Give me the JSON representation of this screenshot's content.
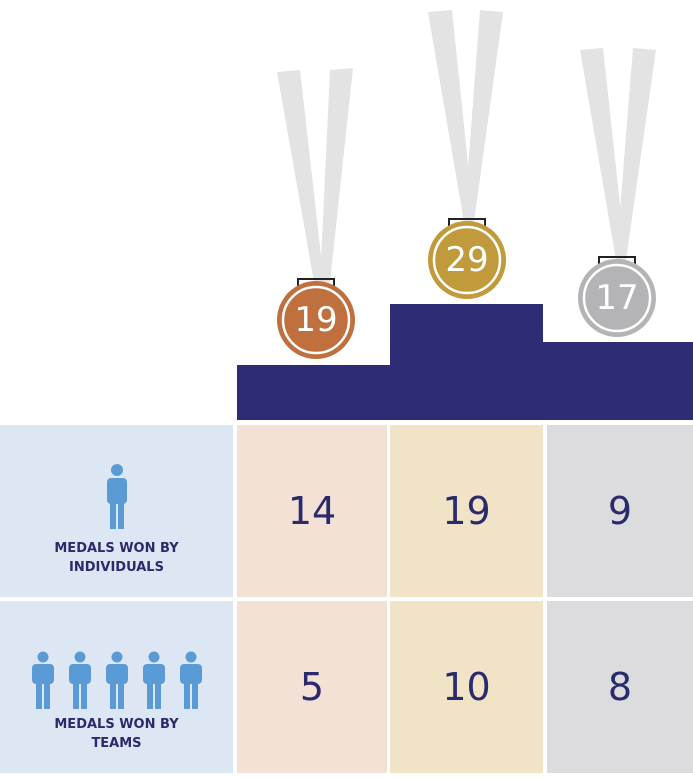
{
  "medals": [
    "19",
    "29",
    "17"
  ],
  "rows": [
    {
      "label": "MEDALS WON BY INDIVIDUALS",
      "values": [
        14,
        19,
        9
      ]
    },
    {
      "label": "MEDALS WON BY TEAMS",
      "values": [
        5,
        10,
        8
      ]
    }
  ]
}
